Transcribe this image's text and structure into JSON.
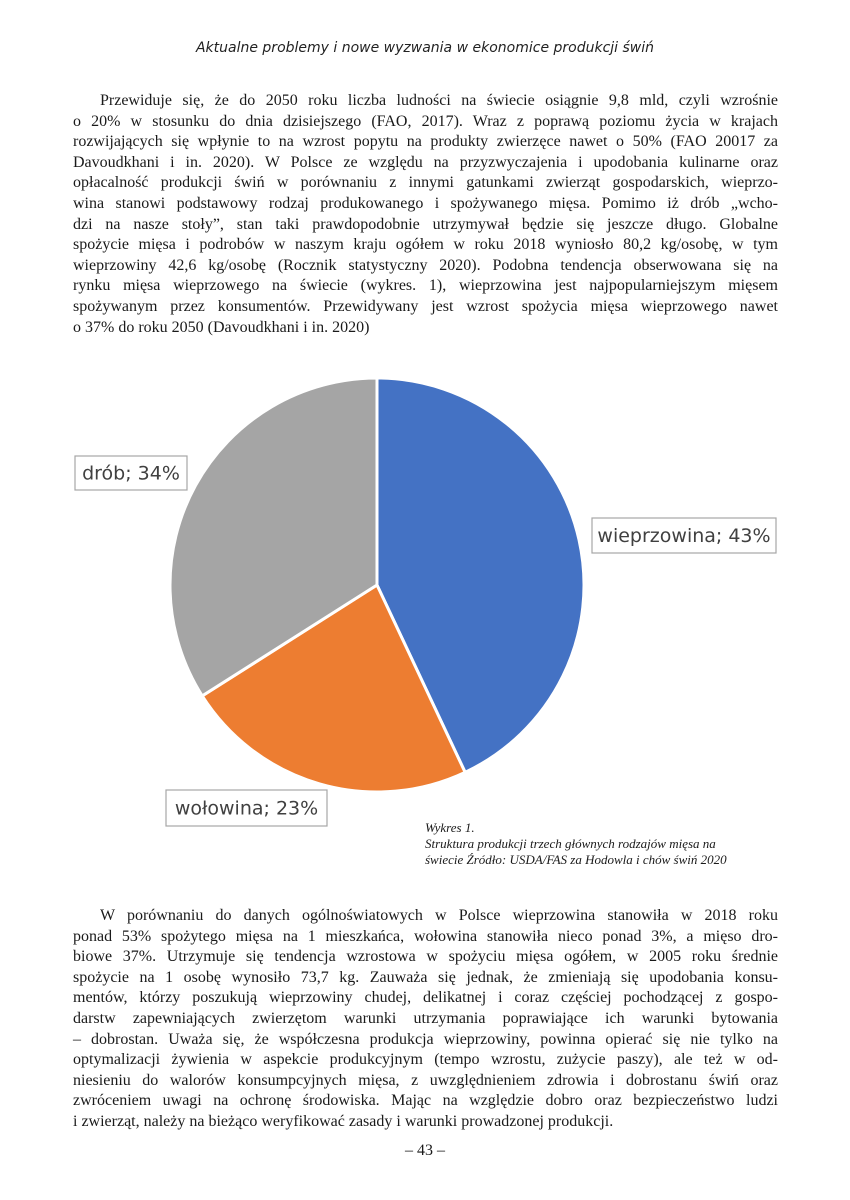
{
  "header": "Aktualne problemy i nowe wyzwania w ekonomice produkcji świń",
  "paragraphs": [
    [
      "Przewiduje się, że do 2050 roku liczba ludności na świecie osiągnie 9,8 mld, czyli wzrośnie",
      "o 20% w stosunku do dnia dzisiejszego (FAO, 2017). Wraz z poprawą poziomu życia w krajach",
      "rozwijających się wpłynie to na wzrost popytu na produkty zwierzęce nawet o 50% (FAO 20017 za",
      "Davoudkhani i in. 2020). W Polsce ze względu na przyzwyczajenia i upodobania kulinarne oraz",
      "opłacalność produkcji świń w porównaniu z innymi gatunkami zwierząt gospodarskich, wieprzo-",
      "wina stanowi podstawowy rodzaj produkowanego i spożywanego mięsa. Pomimo iż drób „wcho-",
      "dzi na nasze stoły”, stan taki prawdopodobnie utrzymywał będzie się jeszcze długo. Globalne",
      "spożycie mięsa i podrobów w naszym kraju ogółem w roku 2018 wyniosło 80,2 kg/osobę, w tym",
      "wieprzowiny 42,6 kg/osobę (Rocznik statystyczny 2020). Podobna tendencja obserwowana się na",
      "rynku mięsa wieprzowego na świecie (wykres. 1), wieprzowina jest najpopularniejszym mięsem",
      "spożywanym przez konsumentów. Przewidywany jest wzrost spożycia mięsa wieprzowego nawet",
      "o 37% do roku 2050 (Davoudkhani i in. 2020)"
    ],
    [
      "W porównaniu do danych ogólnoświatowych w Polsce wieprzowina stanowiła w 2018 roku",
      "ponad 53% spożytego mięsa na 1 mieszkańca, wołowina stanowiła nieco ponad 3%, a mięso dro-",
      "biowe 37%. Utrzymuje się tendencja wzrostowa w spożyciu mięsa ogółem, w 2005 roku średnie",
      "spożycie na 1 osobę wynosiło 73,7 kg. Zauważa się jednak, że zmieniają się upodobania konsu-",
      "mentów, którzy poszukują wieprzowiny chudej, delikatnej i coraz częściej pochodzącej z gospo-",
      "darstw zapewniających zwierzętom warunki utrzymania poprawiające ich warunki bytowania",
      "– dobrostan. Uważa się, że współczesna produkcja wieprzowiny, powinna opierać się nie tylko na",
      "optymalizacji żywienia w aspekcie produkcyjnym (tempo wzrostu, zużycie paszy), ale też w od-",
      "niesieniu do walorów konsumpcyjnych mięsa, z uwzględnieniem zdrowia i dobrostanu świń oraz",
      "zwróceniem uwagi na ochronę środowiska. Mając na względzie dobro oraz bezpieczeństwo ludzi",
      "i zwierząt, należy na bieżąco weryfikować zasady i warunki prowadzonej produkcji."
    ]
  ],
  "chart": {
    "type": "pie",
    "values": [
      43,
      23,
      34
    ],
    "value_labels": [
      "wieprzowina; 43%",
      "wołowina; 23%",
      "drób; 34%"
    ],
    "colors": [
      "#4472c4",
      "#ed7d31",
      "#a5a5a5"
    ]
  },
  "caption": [
    "Wykres 1.",
    "Struktura produkcji trzech głównych rodzajów mięsa na",
    "świecie Źródło: USDA/FAS za Hodowla i chów świń 2020"
  ],
  "page_number": "– 43 –"
}
